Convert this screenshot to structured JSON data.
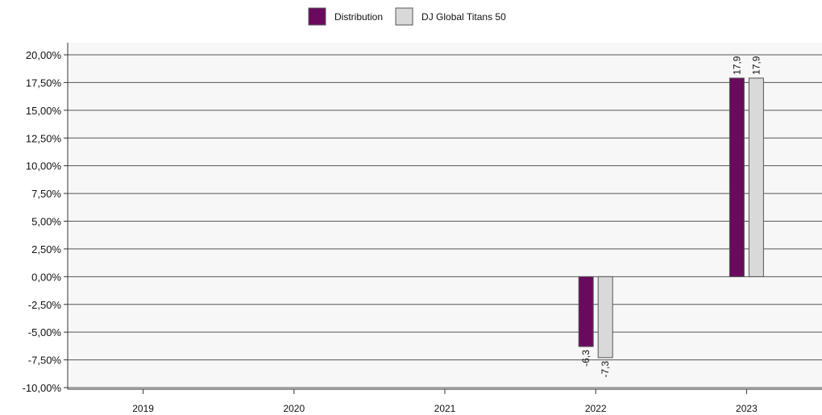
{
  "chart_data": {
    "type": "bar",
    "categories": [
      "2019",
      "2020",
      "2021",
      "2022",
      "2023"
    ],
    "series": [
      {
        "name": "Distribution",
        "values": [
          null,
          null,
          null,
          -6.3,
          17.9
        ],
        "labels": [
          "",
          "",
          "",
          "-6,3",
          "17,9"
        ],
        "color": "#6a0a5e"
      },
      {
        "name": "DJ Global Titans 50",
        "values": [
          null,
          null,
          null,
          -7.3,
          17.9
        ],
        "labels": [
          "",
          "",
          "",
          "-7,3",
          "17,9"
        ],
        "color": "#d9d9d9"
      }
    ],
    "ylim": [
      -10,
      20
    ],
    "yticks": [
      20,
      17.5,
      15,
      12.5,
      10,
      7.5,
      5,
      2.5,
      0,
      -2.5,
      -5,
      -7.5,
      -10
    ],
    "ytick_labels": [
      "20,00%",
      "17,50%",
      "15,00%",
      "12,50%",
      "10,00%",
      "7,50%",
      "5,00%",
      "2,50%",
      "0,00%",
      "-2,50%",
      "-5,00%",
      "-7,50%",
      "-10,00%"
    ],
    "grid": true,
    "legend_position": "top-center",
    "title": "",
    "xlabel": "",
    "ylabel": ""
  }
}
